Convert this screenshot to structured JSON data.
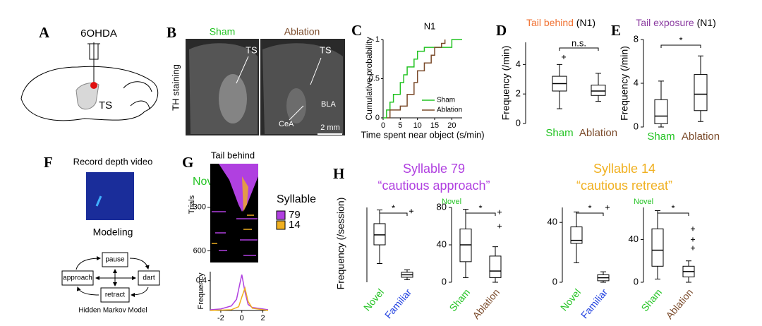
{
  "panels": {
    "A": {
      "label": "A",
      "drug": "6OHDA",
      "region": "TS"
    },
    "B": {
      "label": "B",
      "conditions": [
        "Sham",
        "Ablation"
      ],
      "condition_colors": [
        "#22c322",
        "#7a4a2a"
      ],
      "stain": "TH staining",
      "annotations": [
        "TS",
        "TS",
        "BLA",
        "CeA"
      ],
      "scale_bar": "2 mm"
    },
    "C": {
      "label": "C",
      "chart_data": {
        "type": "line",
        "step": "post",
        "title": "N1",
        "xlabel": "Time spent near object (s/min)",
        "ylabel": "Cumulative probability",
        "xlim": [
          0,
          23
        ],
        "xticks": [
          0,
          5,
          10,
          15,
          20
        ],
        "ylim": [
          0,
          1
        ],
        "yticks": [
          0,
          0.5,
          1
        ],
        "legend": "lower right",
        "series": [
          {
            "name": "Sham",
            "color": "#22c322",
            "x": [
              0,
              1,
              2,
              3,
              5,
              6,
              7,
              9,
              10,
              12,
              18,
              20,
              23
            ],
            "values": [
              0,
              0.1,
              0.2,
              0.3,
              0.45,
              0.55,
              0.65,
              0.75,
              0.85,
              0.9,
              0.9,
              1,
              1
            ]
          },
          {
            "name": "Ablation",
            "color": "#7a4a2a",
            "x": [
              1,
              2,
              5,
              7,
              9,
              10,
              12,
              14,
              15,
              17,
              18
            ],
            "values": [
              0,
              0.1,
              0.15,
              0.3,
              0.45,
              0.6,
              0.7,
              0.8,
              0.9,
              0.95,
              1
            ]
          }
        ]
      }
    },
    "D": {
      "label": "D",
      "chart_data": {
        "type": "box",
        "title": [
          "Tail behind",
          "(N1)"
        ],
        "title_colors": [
          "#f07030",
          "#000000"
        ],
        "ylabel": "Frequency (/min)",
        "ylim": [
          0,
          5.5
        ],
        "yticks": [
          0,
          2,
          4
        ],
        "categories": [
          "Sham",
          "Ablation"
        ],
        "category_colors": [
          "#22c322",
          "#7a4a2a"
        ],
        "significance": "n.s.",
        "stats": [
          {
            "min": 1,
            "q1": 2.2,
            "median": 2.7,
            "q3": 3.2,
            "max": 4,
            "outliers": [
              4.5
            ]
          },
          {
            "min": 1.5,
            "q1": 1.9,
            "median": 2.2,
            "q3": 2.6,
            "max": 3.4,
            "outliers": []
          }
        ]
      }
    },
    "E": {
      "label": "E",
      "chart_data": {
        "type": "box",
        "title": [
          "Tail exposure",
          "(N1)"
        ],
        "title_colors": [
          "#8a3aa0",
          "#000000"
        ],
        "ylabel": "Frequency (/min)",
        "ylim": [
          0,
          8
        ],
        "yticks": [
          0,
          4,
          8
        ],
        "categories": [
          "Sham",
          "Ablation"
        ],
        "category_colors": [
          "#22c322",
          "#7a4a2a"
        ],
        "significance": "*",
        "stats": [
          {
            "min": 0,
            "q1": 0.3,
            "median": 1,
            "q3": 2.5,
            "max": 4.2,
            "outliers": []
          },
          {
            "min": 0.5,
            "q1": 1.5,
            "median": 3,
            "q3": 4.8,
            "max": 6.5,
            "outliers": []
          }
        ]
      }
    },
    "F": {
      "label": "F",
      "video": "Record depth video",
      "modeling": "Modeling",
      "states": [
        "pause",
        "approach",
        "dart",
        "retract"
      ],
      "model": "Hidden Markov Model"
    },
    "G": {
      "label": "G",
      "title": "Tail behind",
      "condition": "Novel",
      "raster": {
        "ylabel": "Trials",
        "ylim": [
          0,
          680
        ],
        "yticks": [
          300,
          600
        ]
      },
      "chart_data": {
        "type": "line",
        "ylabel": "Frequency",
        "legend_title": "Syllable",
        "xlim": [
          -3,
          2.5
        ],
        "xticks": [
          -2,
          0,
          2
        ],
        "ylim": [
          0,
          0.52
        ],
        "yticks": [
          0.4
        ],
        "series": [
          {
            "name": "79",
            "color": "#b040e0",
            "x": [
              -3,
              -2,
              -1,
              -0.5,
              -0.2,
              0,
              0.3,
              0.6,
              1,
              2,
              2.5
            ],
            "values": [
              0.01,
              0.02,
              0.06,
              0.15,
              0.35,
              0.48,
              0.25,
              0.08,
              0.04,
              0.02,
              0.01
            ]
          },
          {
            "name": "14",
            "color": "#f0b020",
            "x": [
              -3,
              -1,
              -0.3,
              0,
              0.3,
              0.6,
              1,
              2,
              2.5
            ],
            "values": [
              0,
              0.01,
              0.05,
              0.18,
              0.3,
              0.12,
              0.03,
              0.01,
              0
            ]
          }
        ]
      }
    },
    "H": {
      "label": "H",
      "titles": [
        {
          "name": "Syllable 79",
          "desc": "“cautious approach”",
          "color": "#b040e0"
        },
        {
          "name": "Syllable 14",
          "desc": "“cautious retreat”",
          "color": "#f0b020"
        }
      ],
      "ylabel": "Frequency (/session)",
      "charts": [
        {
          "type": "box",
          "ylim": [
            0,
            60
          ],
          "categories": [
            "Novel",
            "Familiar"
          ],
          "category_colors": [
            "#22c322",
            "#2040e0"
          ],
          "significance": "*",
          "stats": [
            {
              "min": 15,
              "q1": 30,
              "median": 38,
              "q3": 47,
              "max": 58,
              "outliers": []
            },
            {
              "min": 2,
              "q1": 4,
              "median": 6,
              "q3": 8,
              "max": 10,
              "outliers": [
                57
              ]
            }
          ]
        },
        {
          "type": "box",
          "condition": "Novel",
          "ylim": [
            0,
            80
          ],
          "yticks": [
            0,
            40,
            80
          ],
          "categories": [
            "Sham",
            "Ablation"
          ],
          "category_colors": [
            "#22c322",
            "#7a4a2a"
          ],
          "significance": "*",
          "stats": [
            {
              "min": 5,
              "q1": 22,
              "median": 40,
              "q3": 57,
              "max": 78,
              "outliers": []
            },
            {
              "min": 0,
              "q1": 5,
              "median": 12,
              "q3": 28,
              "max": 38,
              "outliers": [
                60,
                75
              ]
            }
          ]
        },
        {
          "type": "box",
          "ylim": [
            0,
            50
          ],
          "yticks": [
            0,
            40
          ],
          "categories": [
            "Novel",
            "Familiar"
          ],
          "category_colors": [
            "#22c322",
            "#2040e0"
          ],
          "significance": "*",
          "stats": [
            {
              "min": 13,
              "q1": 26,
              "median": 28,
              "q3": 37,
              "max": 47,
              "outliers": []
            },
            {
              "min": 0,
              "q1": 1,
              "median": 3,
              "q3": 5,
              "max": 7,
              "outliers": [
                50
              ]
            }
          ]
        },
        {
          "type": "box",
          "condition": "Novel",
          "ylim": [
            0,
            70
          ],
          "yticks": [
            0,
            40
          ],
          "categories": [
            "Sham",
            "Ablation"
          ],
          "category_colors": [
            "#22c322",
            "#7a4a2a"
          ],
          "significance": "*",
          "stats": [
            {
              "min": 3,
              "q1": 15,
              "median": 30,
              "q3": 50,
              "max": 67,
              "outliers": []
            },
            {
              "min": 0,
              "q1": 5,
              "median": 10,
              "q3": 15,
              "max": 20,
              "outliers": [
                32,
                40,
                50
              ]
            }
          ]
        }
      ]
    }
  }
}
